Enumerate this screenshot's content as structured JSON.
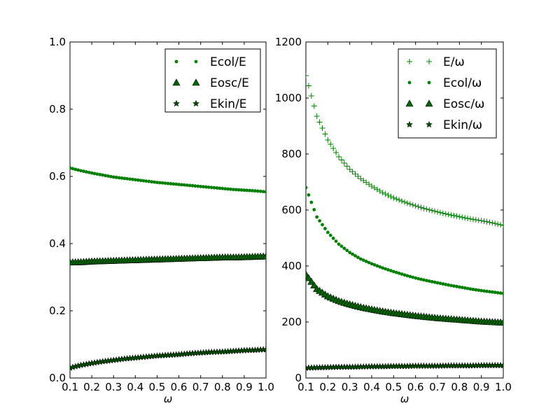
{
  "chart_data": [
    {
      "type": "scatter",
      "xlabel": "ω",
      "ylabel": "",
      "xlim": [
        0.1,
        1.0
      ],
      "ylim": [
        0.0,
        1.0
      ],
      "x_ticks": [
        "0.1",
        "0.2",
        "0.3",
        "0.4",
        "0.5",
        "0.6",
        "0.7",
        "0.8",
        "0.9",
        "1.0"
      ],
      "y_ticks": [
        "0.0",
        "0.2",
        "0.4",
        "0.6",
        "0.8",
        "1.0"
      ],
      "grid": false,
      "legend_position": "top-right",
      "series": [
        {
          "name": "Ecol/E",
          "marker": "dot",
          "color": "#008000",
          "x": [
            0.1,
            0.15,
            0.2,
            0.25,
            0.3,
            0.35,
            0.4,
            0.45,
            0.5,
            0.55,
            0.6,
            0.65,
            0.7,
            0.75,
            0.8,
            0.85,
            0.9,
            0.95,
            1.0
          ],
          "values": [
            0.625,
            0.617,
            0.61,
            0.604,
            0.598,
            0.594,
            0.59,
            0.586,
            0.582,
            0.579,
            0.576,
            0.573,
            0.57,
            0.567,
            0.564,
            0.561,
            0.559,
            0.557,
            0.554
          ]
        },
        {
          "name": "Eosc/E",
          "marker": "triangle",
          "color": "#006400",
          "x": [
            0.1,
            0.15,
            0.2,
            0.25,
            0.3,
            0.35,
            0.4,
            0.45,
            0.5,
            0.55,
            0.6,
            0.65,
            0.7,
            0.75,
            0.8,
            0.85,
            0.9,
            0.95,
            1.0
          ],
          "values": [
            0.344,
            0.345,
            0.347,
            0.348,
            0.349,
            0.35,
            0.351,
            0.352,
            0.353,
            0.354,
            0.355,
            0.356,
            0.357,
            0.358,
            0.359,
            0.359,
            0.36,
            0.361,
            0.362
          ]
        },
        {
          "name": "Ekin/E",
          "marker": "star",
          "color": "#004d00",
          "x": [
            0.1,
            0.15,
            0.2,
            0.25,
            0.3,
            0.35,
            0.4,
            0.45,
            0.5,
            0.55,
            0.6,
            0.65,
            0.7,
            0.75,
            0.8,
            0.85,
            0.9,
            0.95,
            1.0
          ],
          "values": [
            0.03,
            0.038,
            0.044,
            0.049,
            0.053,
            0.057,
            0.06,
            0.063,
            0.066,
            0.068,
            0.07,
            0.073,
            0.075,
            0.077,
            0.078,
            0.08,
            0.082,
            0.083,
            0.085
          ]
        }
      ]
    },
    {
      "type": "scatter",
      "xlabel": "ω",
      "ylabel": "",
      "xlim": [
        0.1,
        1.0
      ],
      "ylim": [
        0,
        1200
      ],
      "x_ticks": [
        "0.1",
        "0.2",
        "0.3",
        "0.4",
        "0.5",
        "0.6",
        "0.7",
        "0.8",
        "0.9",
        "1.0"
      ],
      "y_ticks": [
        "0",
        "200",
        "400",
        "600",
        "800",
        "1000",
        "1200"
      ],
      "grid": false,
      "legend_position": "top-right",
      "series": [
        {
          "name": "E/ω",
          "marker": "plus",
          "color": "#008000",
          "x": [
            0.1,
            0.15,
            0.2,
            0.25,
            0.3,
            0.35,
            0.4,
            0.45,
            0.5,
            0.55,
            0.6,
            0.65,
            0.7,
            0.75,
            0.8,
            0.85,
            0.9,
            0.95,
            1.0
          ],
          "values": [
            1080,
            935,
            850,
            790,
            745,
            712,
            685,
            662,
            643,
            628,
            615,
            603,
            593,
            584,
            576,
            568,
            562,
            554,
            545
          ]
        },
        {
          "name": "Ecol/ω",
          "marker": "dot",
          "color": "#008000",
          "x": [
            0.1,
            0.15,
            0.2,
            0.25,
            0.3,
            0.35,
            0.4,
            0.45,
            0.5,
            0.55,
            0.6,
            0.65,
            0.7,
            0.75,
            0.8,
            0.85,
            0.9,
            0.95,
            1.0
          ],
          "values": [
            680,
            575,
            520,
            478,
            448,
            425,
            408,
            393,
            380,
            368,
            357,
            348,
            340,
            332,
            325,
            318,
            312,
            307,
            302
          ]
        },
        {
          "name": "Eosc/ω",
          "marker": "triangle",
          "color": "#006400",
          "x": [
            0.1,
            0.15,
            0.2,
            0.25,
            0.3,
            0.35,
            0.4,
            0.45,
            0.5,
            0.55,
            0.6,
            0.65,
            0.7,
            0.75,
            0.8,
            0.85,
            0.9,
            0.95,
            1.0
          ],
          "values": [
            370,
            318,
            292,
            275,
            263,
            253,
            245,
            238,
            232,
            227,
            222,
            218,
            214,
            211,
            208,
            205,
            202,
            200,
            198
          ]
        },
        {
          "name": "Ekin/ω",
          "marker": "star",
          "color": "#004d00",
          "x": [
            0.1,
            0.15,
            0.2,
            0.25,
            0.3,
            0.35,
            0.4,
            0.45,
            0.5,
            0.55,
            0.6,
            0.65,
            0.7,
            0.75,
            0.8,
            0.85,
            0.9,
            0.95,
            1.0
          ],
          "values": [
            36,
            37,
            38,
            39,
            39,
            40,
            41,
            41,
            42,
            42,
            43,
            43,
            43,
            44,
            44,
            44,
            45,
            45,
            45
          ]
        }
      ]
    }
  ]
}
